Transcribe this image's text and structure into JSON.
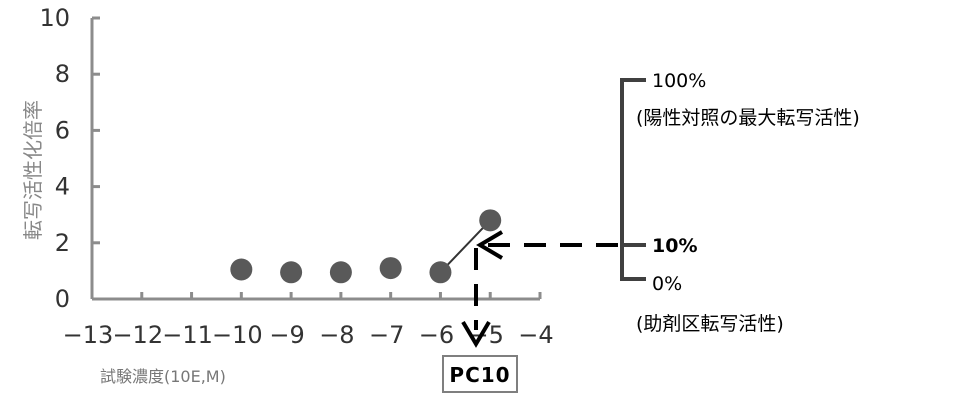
{
  "chart_data": {
    "type": "scatter",
    "title": "",
    "xlabel": "試験濃度(10E,M)",
    "ylabel": "転写活性化倍率",
    "xlim": [
      -13,
      -4
    ],
    "ylim": [
      0,
      10
    ],
    "x_ticks": [
      "−13",
      "−12",
      "−11",
      "−10",
      "−9",
      "−8",
      "−7",
      "−6",
      "−5",
      "−4"
    ],
    "y_ticks": [
      "0",
      "2",
      "4",
      "6",
      "8",
      "10"
    ],
    "series": [
      {
        "x": [
          -10,
          -9,
          -8,
          -7,
          -6,
          -5
        ],
        "y": [
          1.05,
          0.95,
          0.95,
          1.1,
          0.95,
          2.8
        ]
      }
    ],
    "annotations": {
      "scale_top_label": "100%",
      "scale_top_note": "(陽性対照の最大転写活性)",
      "scale_mid_label": "10%",
      "scale_bottom_label": "0%",
      "scale_bottom_note": "(助剤区転写活性)",
      "pc_label": "PC10"
    },
    "colors": {
      "marker": "#595959",
      "axis": "#8c8c8c",
      "bracket": "#404040",
      "arrow": "#000000"
    }
  }
}
